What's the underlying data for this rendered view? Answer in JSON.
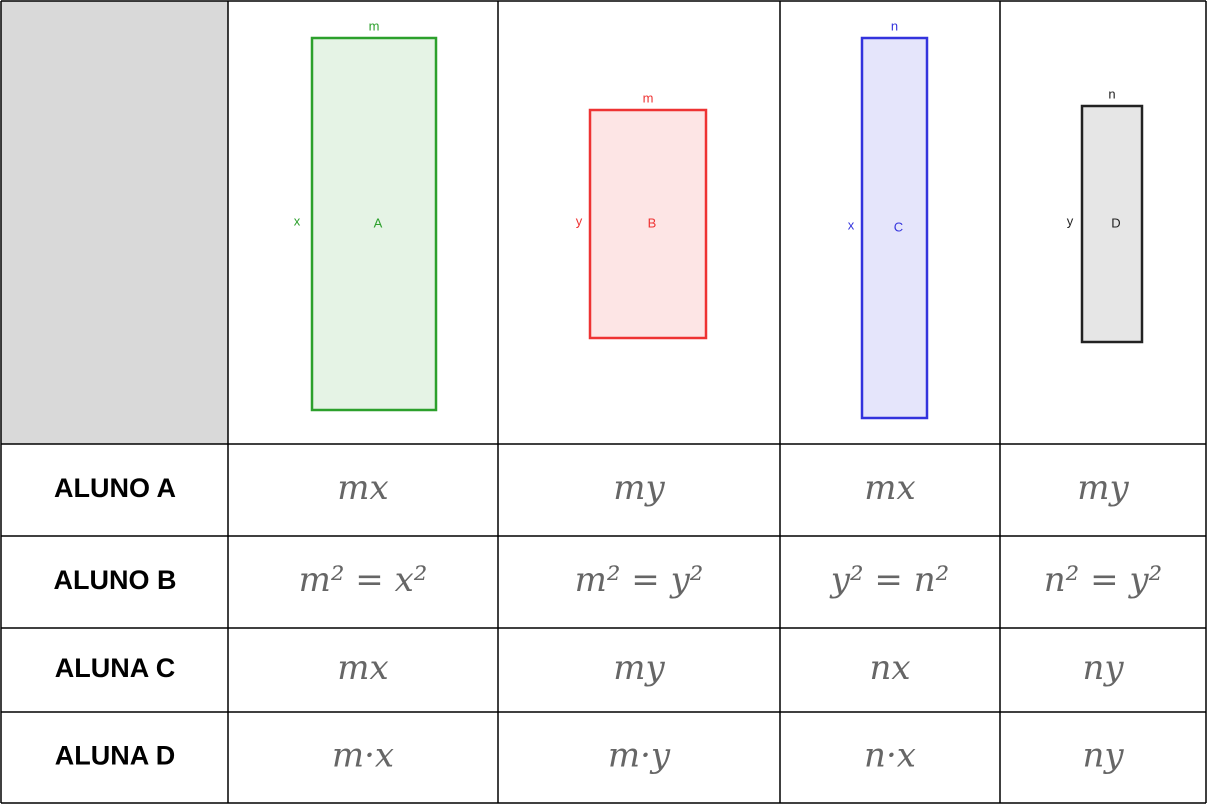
{
  "figures": [
    {
      "label": "A",
      "top": "m",
      "side": "x"
    },
    {
      "label": "B",
      "top": "m",
      "side": "y"
    },
    {
      "label": "C",
      "top": "n",
      "side": "x"
    },
    {
      "label": "D",
      "top": "n",
      "side": "y"
    }
  ],
  "rows": [
    {
      "student": "ALUNO A",
      "answers": [
        "mx",
        "my",
        "mx",
        "my"
      ]
    },
    {
      "student": "ALUNO B",
      "answers": [
        "m² = x²",
        "m² = y²",
        "y² = n²",
        "n² = y²"
      ]
    },
    {
      "student": "ALUNA C",
      "answers": [
        "mx",
        "my",
        "nx",
        "ny"
      ]
    },
    {
      "student": "ALUNA D",
      "answers": [
        "m·x",
        "m·y",
        "n·x",
        "ny"
      ]
    }
  ]
}
